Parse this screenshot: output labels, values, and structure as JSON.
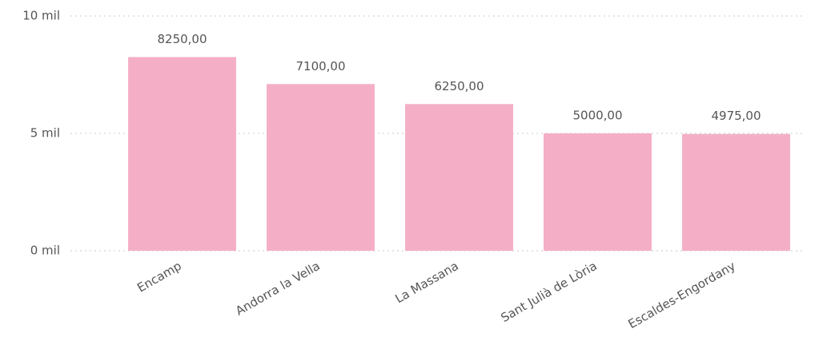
{
  "chart_data": {
    "type": "bar",
    "categories": [
      "Encamp",
      "Andorra la Vella",
      "La Massana",
      "Sant Julià de Lòria",
      "Escaldes-Engordany"
    ],
    "values": [
      8250,
      7100,
      6250,
      5000,
      4975
    ],
    "value_labels": [
      "8250,00",
      "7100,00",
      "6250,00",
      "5000,00",
      "4975,00"
    ],
    "color": "#f4afc6",
    "ylim": [
      0,
      10000
    ],
    "yticks": [
      {
        "value": 0,
        "label": "0 mil"
      },
      {
        "value": 5000,
        "label": "5 mil"
      },
      {
        "value": 10000,
        "label": "10 mil"
      }
    ],
    "grid": true
  }
}
